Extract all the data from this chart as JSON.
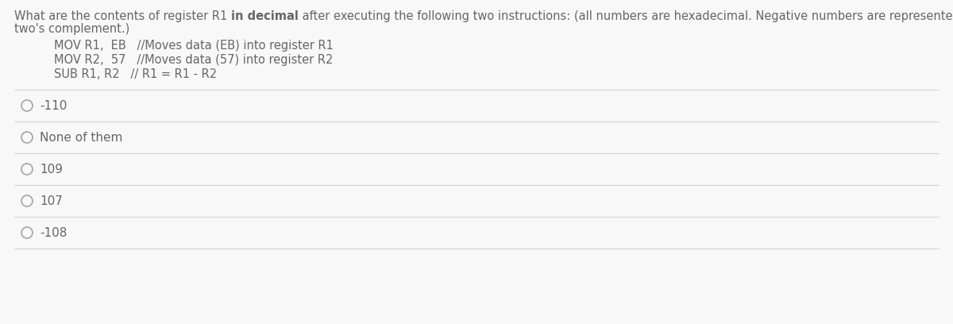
{
  "bg_color": "#f8f8f8",
  "seg1": "What are the contents of register R1 ",
  "seg2": "in decimal",
  "seg3": " after executing the following two instructions: (all numbers are hexadecimal. Negative numbers are represented with",
  "question_line2": "two's complement.)",
  "code_lines": [
    "MOV R1,  EB   //Moves data (EB) into register R1",
    "MOV R2,  57   //Moves data (57) into register R2",
    "SUB R1, R2   // R1 = R1 - R2"
  ],
  "options": [
    "-110",
    "None of them",
    "109",
    "107",
    "-108"
  ],
  "text_color": "#666666",
  "line_color": "#d8d8d8",
  "font_size": 10.5,
  "code_font_size": 10.5,
  "option_font_size": 11.0
}
